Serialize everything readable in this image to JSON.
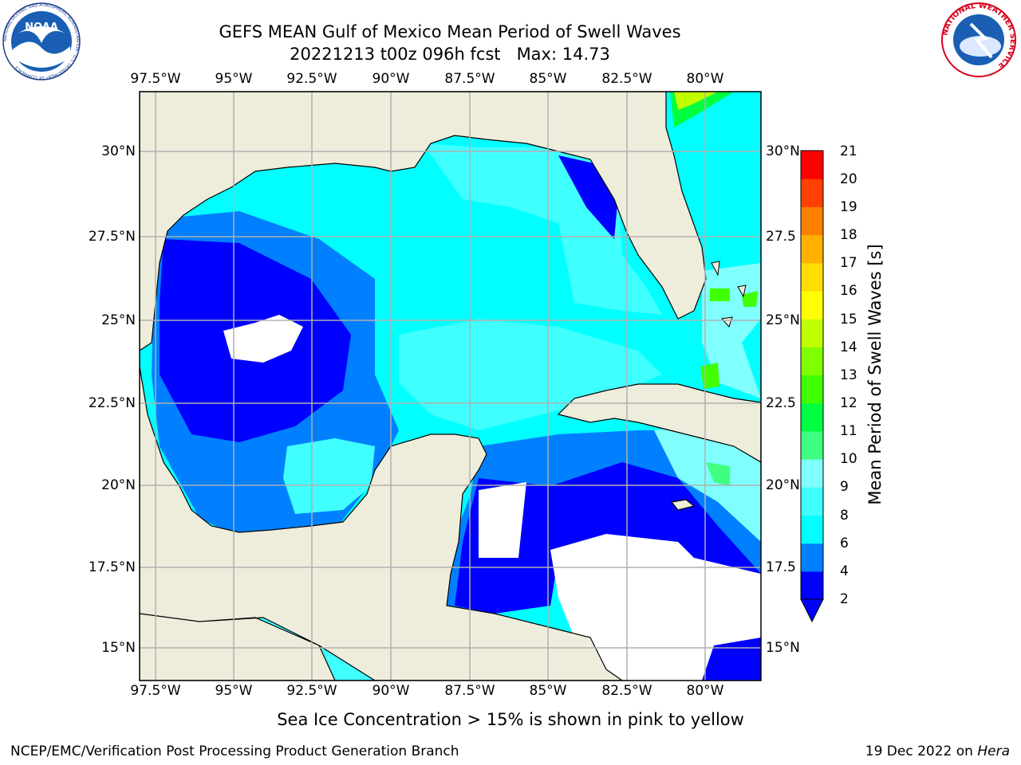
{
  "header": {
    "title_line1": "GEFS MEAN Gulf of Mexico Mean Period of Swell Waves",
    "title_line2": "20221213 t00z 096h fcst   Max: 14.73"
  },
  "logos": {
    "left": {
      "name": "NOAA",
      "ring_text": "NATIONAL OCEANIC AND ATMOSPHERIC ADMINISTRATION · U.S. DEPARTMENT OF COMMERCE"
    },
    "right": {
      "name": "NATIONAL WEATHER SERVICE"
    }
  },
  "map": {
    "lon_ticks": [
      "97.5°W",
      "95°W",
      "92.5°W",
      "90°W",
      "87.5°W",
      "85°W",
      "82.5°W",
      "80°W"
    ],
    "lat_ticks_left": [
      "30°N",
      "27.5°N",
      "25°N",
      "22.5°N",
      "20°N",
      "17.5°N",
      "15°N"
    ],
    "lat_ticks_right": [
      "30°N",
      "27.5",
      "25°N",
      "22.5",
      "20°N",
      "17.5",
      "15°N"
    ],
    "extent": {
      "lon": [
        -98,
        -79
      ],
      "lat": [
        14,
        32
      ]
    },
    "colors": {
      "land": "#eeeddc",
      "coast": "#000000",
      "grid": "#b0b0b0",
      "masked": "#ffffff"
    }
  },
  "colorbar": {
    "label": "Mean Period of Swell Waves [s]",
    "ticks": [
      "21",
      "20",
      "19",
      "18",
      "17",
      "16",
      "15",
      "14",
      "13",
      "12",
      "11",
      "10",
      "9",
      "8",
      "6",
      "4",
      "2"
    ],
    "levels": [
      2,
      4,
      6,
      8,
      9,
      10,
      11,
      12,
      13,
      14,
      15,
      16,
      17,
      18,
      19,
      20,
      21
    ],
    "colors": [
      "#0000ff",
      "#0080ff",
      "#00ffff",
      "#40ffff",
      "#80ffff",
      "#40ff80",
      "#00ff40",
      "#40ff00",
      "#80ff00",
      "#c0ff00",
      "#ffff00",
      "#ffdd00",
      "#ffb000",
      "#ff8000",
      "#ff4000",
      "#ff0000"
    ],
    "extend_color": "#0000ff"
  },
  "chart_data": {
    "type": "heatmap",
    "title": "GEFS MEAN Gulf of Mexico Mean Period of Swell Waves",
    "subtitle": "20221213 t00z 096h fcst   Max: 14.73",
    "variable": "Mean Period of Swell Waves [s]",
    "units": "s",
    "max_value": 14.73,
    "levels": [
      2,
      4,
      6,
      8,
      9,
      10,
      11,
      12,
      13,
      14,
      15,
      16,
      17,
      18,
      19,
      20,
      21
    ],
    "regions": [
      {
        "area": "Western Gulf of Mexico",
        "period_s": "2-4"
      },
      {
        "area": "Bay of Campeche",
        "period_s": "4-6"
      },
      {
        "area": "Central and Eastern Gulf of Mexico",
        "period_s": "6-8"
      },
      {
        "area": "Northwest Caribbean",
        "period_s": "2-4"
      },
      {
        "area": "Atlantic east of Florida",
        "period_s": "6-8"
      },
      {
        "area": "Bahamas",
        "period_s": "9-11"
      },
      {
        "area": "Atlantic northeast corner",
        "period_s": "12-14"
      }
    ]
  },
  "footer": {
    "note": "Sea Ice Concentration > 15% is shown in pink to yellow",
    "left": "NCEP/EMC/Verification Post Processing Product Generation Branch",
    "right_date": "19 Dec 2022 on",
    "right_host": "Hera"
  }
}
